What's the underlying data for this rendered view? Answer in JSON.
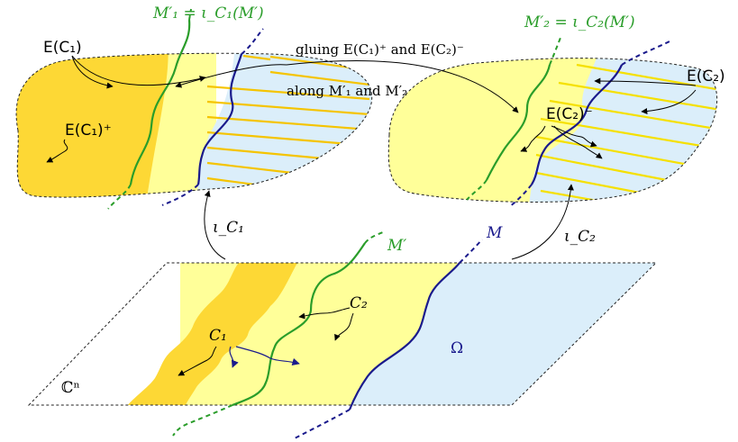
{
  "colors": {
    "dark_yellow": "#fdd835",
    "light_yellow": "#ffff99",
    "light_blue": "#dbeefa",
    "green": "#2a9d2a",
    "navy": "#1a1a8c",
    "stripe": "#f5c400"
  },
  "labels": {
    "m1_prime": "M′₁ = ι_C₁(M′)",
    "m2_prime": "M′₂ = ι_C₂(M′)",
    "e_c1": "E(C₁)",
    "e_c1_plus": "E(C₁)⁺",
    "e_c2": "E(C₂)",
    "e_c2_minus": "E(C₂)⁻",
    "gluing_line1": "gluing E(C₁)⁺ and E(C₂)⁻",
    "gluing_line2": "along M′₁ and M′₂",
    "iota_c1": "ι_C₁",
    "iota_c2": "ι_C₂",
    "m_prime": "M′",
    "m": "M",
    "c1": "C₁",
    "c2": "C₂",
    "omega": "Ω",
    "cn": "ℂⁿ"
  }
}
